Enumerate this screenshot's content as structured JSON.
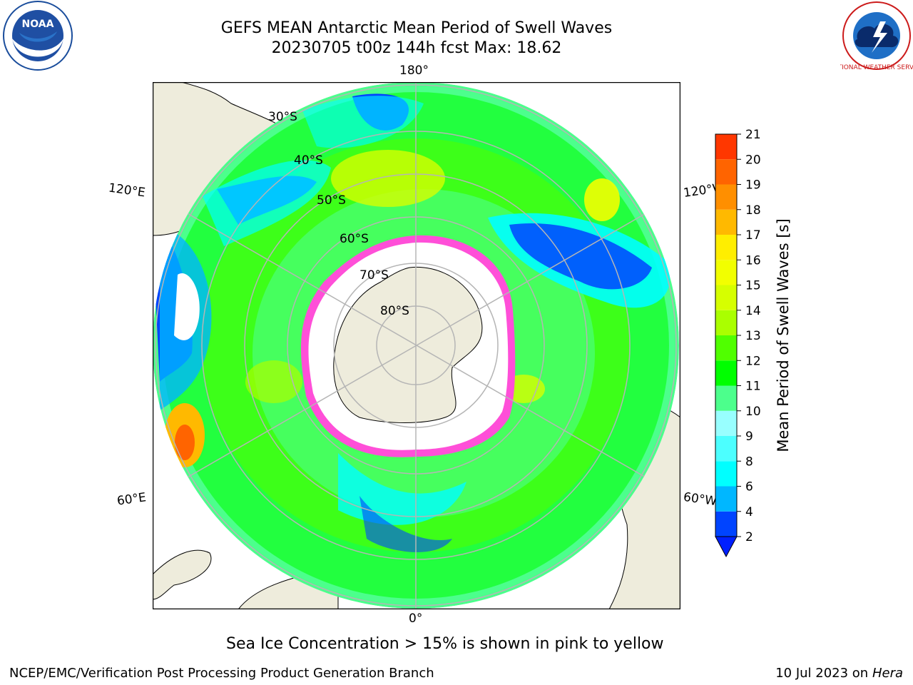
{
  "header": {
    "title_line1": "GEFS MEAN Antarctic Mean Period of Swell Waves",
    "title_line2": "20230705 t00z 144h fcst   Max: 18.62"
  },
  "logos": {
    "left": {
      "name": "noaa-logo",
      "text": "NOAA"
    },
    "right": {
      "name": "nws-logo",
      "text": "NATIONAL WEATHER SERVICE"
    }
  },
  "map": {
    "projection": "south-polar-stereographic",
    "meridian_labels": {
      "top": "180°",
      "bottom": "0°",
      "left_upper": "120°E",
      "right_upper": "120°W",
      "left_lower": "60°E",
      "right_lower": "60°W"
    },
    "latitude_labels": [
      "30°S",
      "40°S",
      "50°S",
      "60°S",
      "70°S",
      "80°S"
    ],
    "colors": {
      "land": "#eeecdc",
      "grid": "#b5b5b5",
      "ice_edge": "#ff4fd8",
      "ice_fill": "#ffffff"
    }
  },
  "colorbar": {
    "label": "Mean Period of Swell Waves [s]",
    "ticks": [
      "2",
      "4",
      "6",
      "8",
      "9",
      "10",
      "11",
      "12",
      "13",
      "14",
      "15",
      "16",
      "17",
      "18",
      "19",
      "20",
      "21"
    ],
    "colors": [
      "#0044ff",
      "#00b7ff",
      "#00ffff",
      "#4cffff",
      "#98ffff",
      "#4cff8c",
      "#00ff00",
      "#50ff00",
      "#aaff00",
      "#d6ff00",
      "#f2ff00",
      "#ffee00",
      "#ffb900",
      "#ff8f00",
      "#ff6400",
      "#ff3700",
      "#ff0000"
    ],
    "extend_low_color": "#0020ff"
  },
  "footer": {
    "note": "Sea Ice Concentration > 15% is shown in pink to yellow",
    "credit": "NCEP/EMC/Verification Post Processing Product Generation Branch",
    "date_text": "10 Jul 2023 on ",
    "system": "Hera"
  }
}
